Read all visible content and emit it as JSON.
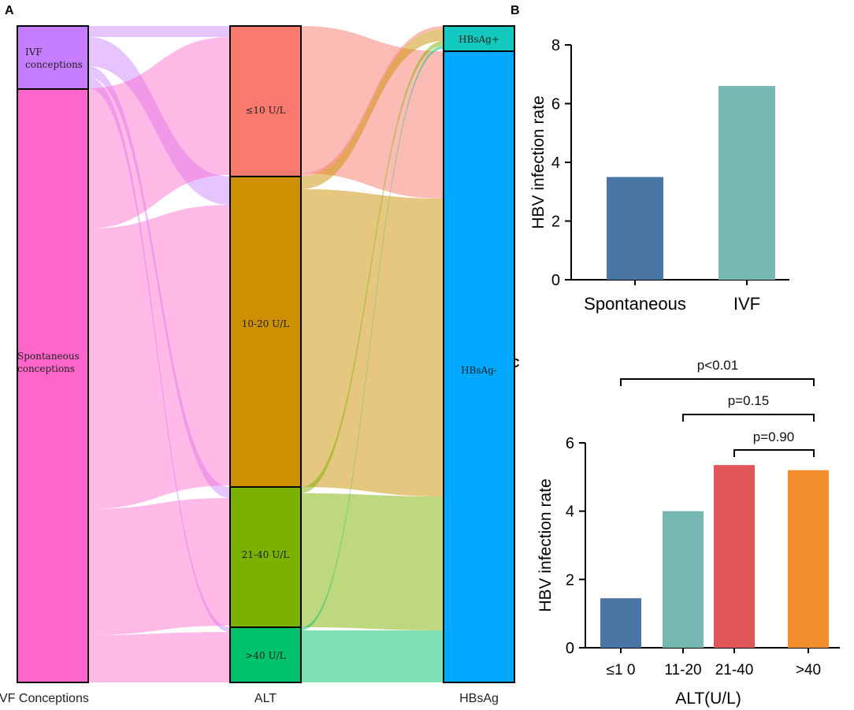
{
  "panel_labels": {
    "a": "A",
    "b": "B",
    "c": "C"
  },
  "colors": {
    "ivf": "#c77dff",
    "spontaneous": "#ff66cc",
    "alt_le10": "#f87a6e",
    "alt_10_20": "#cc9000",
    "alt_21_40": "#7bb200",
    "alt_gt40": "#00c16c",
    "hbsag_pos": "#12c9bf",
    "hbsag_neg": "#00a8ff",
    "bar_blue": "#4a76a5",
    "bar_teal": "#76b7b2",
    "bar_red": "#e15759",
    "bar_orange": "#f28e2b"
  },
  "chart_data": [
    {
      "panel": "A",
      "type": "sankey",
      "columns": [
        "VF Conceptions",
        "ALT",
        "HBsAg"
      ],
      "nodes": {
        "ivf": "IVF conceptions",
        "spontaneous": "Spontaneous conceptions",
        "alt_le10": "≤10 U/L",
        "alt_10_20": "10-20 U/L",
        "alt_21_40": "21-40 U/L",
        "alt_gt40": ">40 U/L",
        "hbsag_pos": "HBsAg+",
        "hbsag_neg": "HBsAg-"
      }
    },
    {
      "panel": "B",
      "type": "bar",
      "categories": [
        "Spontaneous",
        "IVF"
      ],
      "values": [
        3.5,
        6.6
      ],
      "colors": [
        "#4a76a5",
        "#76b7b2"
      ],
      "xlabel": "",
      "ylabel": "HBV infection rate",
      "ylim": [
        0,
        8
      ],
      "yticks": [
        0,
        2,
        4,
        6,
        8
      ]
    },
    {
      "panel": "C",
      "type": "bar",
      "categories": [
        "≤1 0",
        "11-20",
        "21-40",
        ">40"
      ],
      "values": [
        1.45,
        4.0,
        5.35,
        5.2
      ],
      "colors": [
        "#4a76a5",
        "#76b7b2",
        "#e15759",
        "#f28e2b"
      ],
      "xlabel": "ALT(U/L)",
      "ylabel": "HBV infection rate",
      "ylim": [
        0,
        6
      ],
      "yticks": [
        0,
        2,
        4,
        6
      ],
      "annotations": [
        "p<0.01",
        "p=0.15",
        "p=0.90"
      ]
    }
  ]
}
